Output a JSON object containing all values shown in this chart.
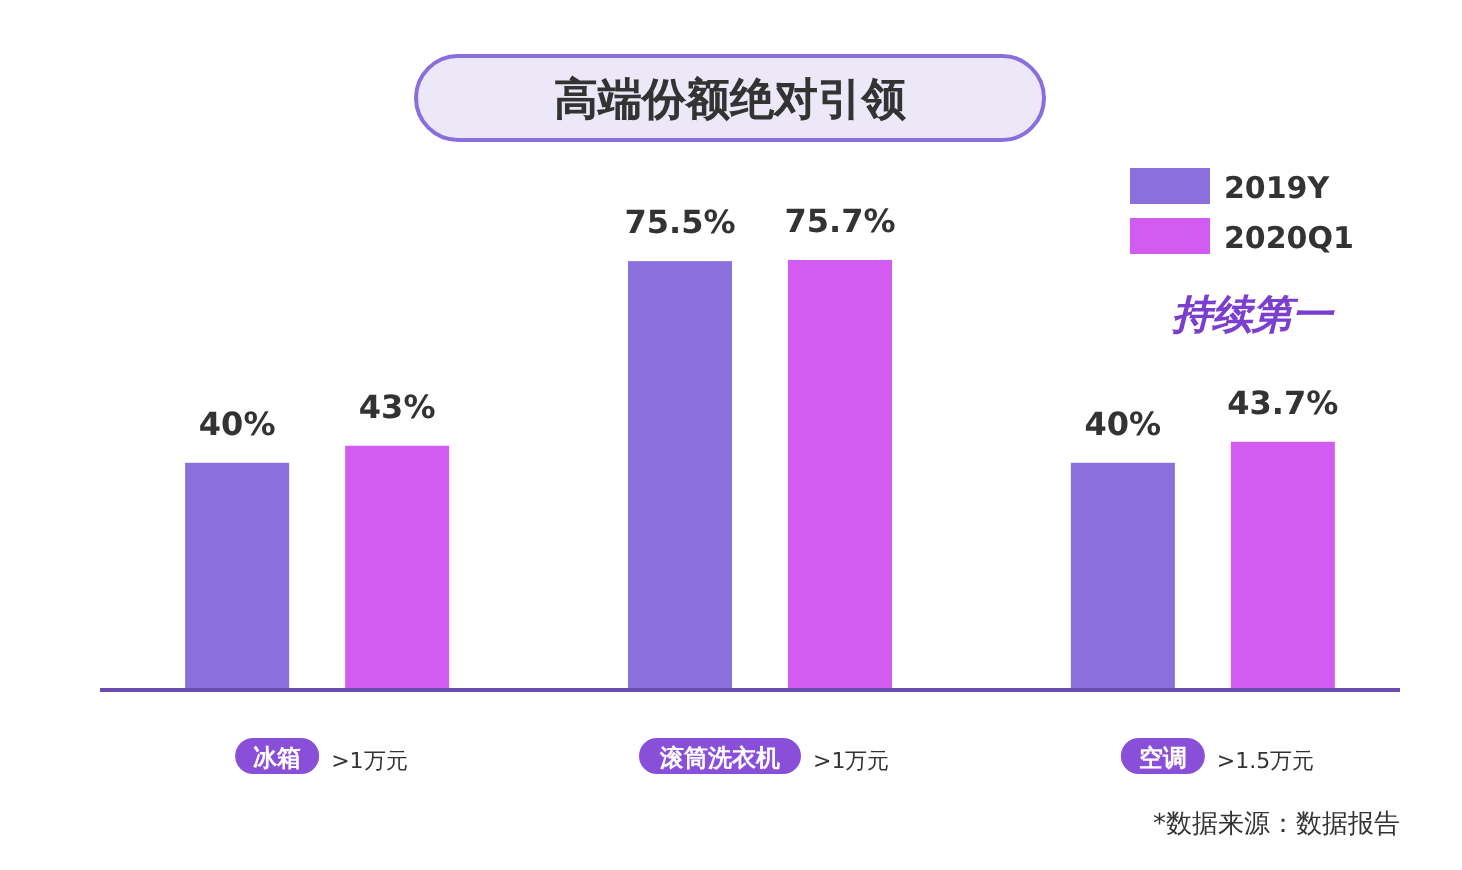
{
  "chart_data": {
    "type": "bar",
    "title": "高端份额绝对引领",
    "categories": [
      "冰箱",
      "滚筒洗衣机",
      "空调"
    ],
    "series": [
      {
        "name": "2019Y",
        "color": "#8b6fdc",
        "values": [
          40,
          75.5,
          40
        ],
        "value_labels": [
          "40%",
          "75.5%",
          "40%"
        ]
      },
      {
        "name": "2020Q1",
        "color": "#d25cf2",
        "values": [
          43,
          75.7,
          43.7
        ],
        "value_labels": [
          "43%",
          "75.7%",
          "43.7%"
        ]
      }
    ],
    "legend": "top right",
    "grid": false,
    "annotations": [
      ">1万元",
      ">1万元",
      ">1.5万元",
      "持续第一",
      "*数据来源：数据报告"
    ]
  }
}
